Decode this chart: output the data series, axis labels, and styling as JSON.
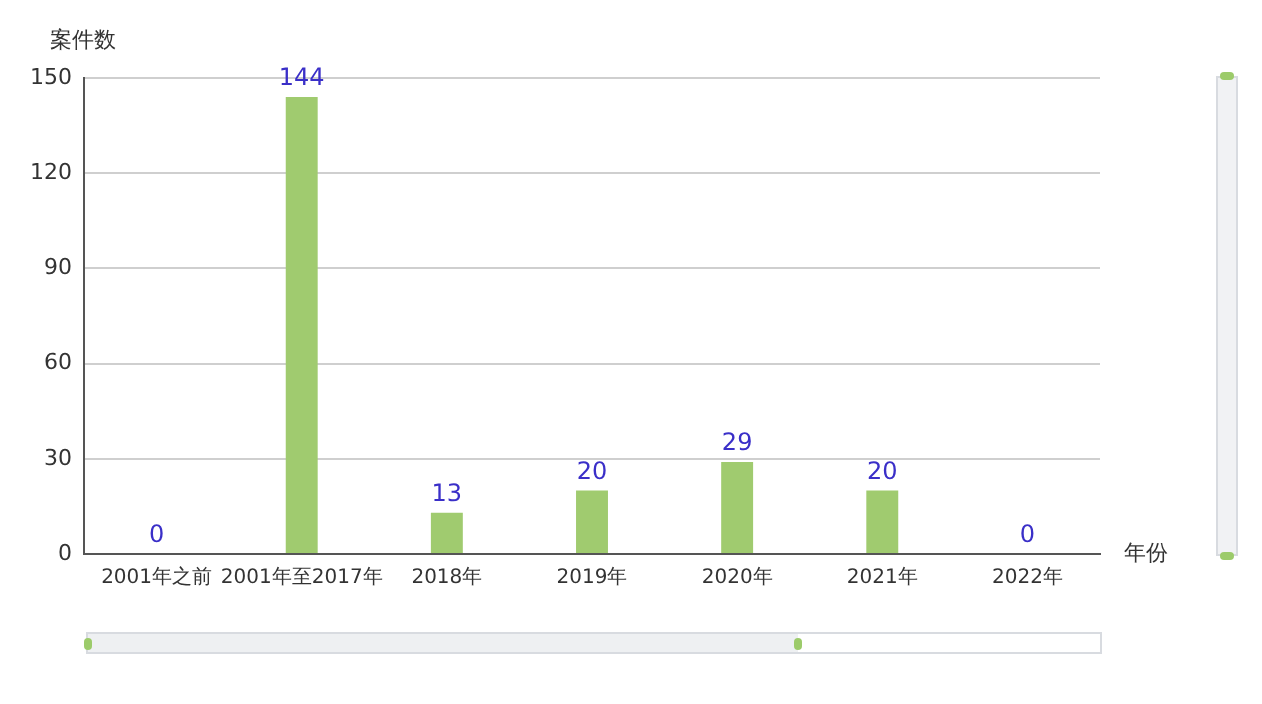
{
  "chart_data": {
    "type": "bar",
    "xlabel": "年份",
    "ylabel": "案件数",
    "categories": [
      "2001年之前",
      "2001年至2017年",
      "2018年",
      "2019年",
      "2020年",
      "2021年",
      "2022年"
    ],
    "values": [
      0,
      144,
      13,
      20,
      29,
      20,
      0
    ],
    "color": "#a0cb6f",
    "ylim": [
      0,
      150
    ],
    "yticks": [
      0,
      30,
      60,
      90,
      120,
      150
    ],
    "grid": "y",
    "data_labels": true,
    "legend": false
  }
}
